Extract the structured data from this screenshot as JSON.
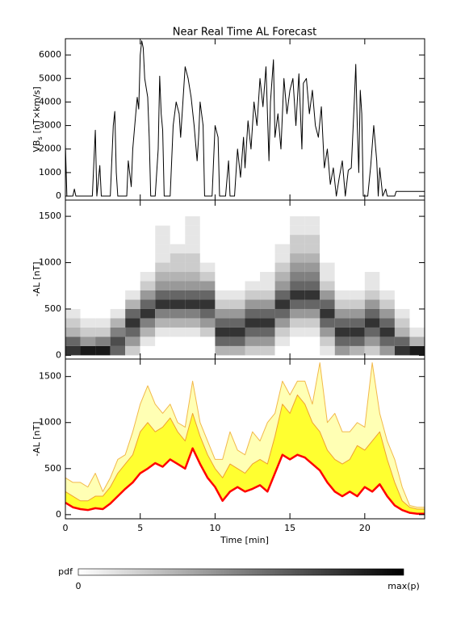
{
  "chart_data": [
    {
      "type": "line",
      "title": "Near Real Time AL Forecast",
      "ylabel": {
        "base": "VB",
        "sub": "s",
        "unit": "[nT×km/s]"
      },
      "xlim": [
        0,
        24
      ],
      "xticks": [
        0,
        5,
        10,
        15,
        20
      ],
      "ylim": [
        -170,
        6690
      ],
      "yticks": [
        0,
        1000,
        2000,
        3000,
        4000,
        5000,
        6000
      ],
      "x": [
        0,
        0.1,
        0.5,
        0.6,
        0.7,
        1.8,
        2.0,
        2.1,
        2.3,
        2.4,
        3.0,
        3.2,
        3.3,
        3.4,
        3.5,
        4.1,
        4.2,
        4.4,
        4.5,
        4.7,
        4.8,
        4.9,
        5.0,
        5.1,
        5.2,
        5.3,
        5.5,
        5.6,
        5.7,
        6.0,
        6.2,
        6.3,
        6.4,
        6.5,
        6.6,
        7.0,
        7.2,
        7.4,
        7.6,
        7.7,
        7.9,
        8.0,
        8.2,
        8.4,
        8.6,
        8.8,
        8.9,
        9.0,
        9.2,
        9.3,
        9.8,
        10.0,
        10.2,
        10.3,
        10.7,
        10.9,
        11.0,
        11.3,
        11.5,
        11.7,
        11.9,
        12.0,
        12.2,
        12.4,
        12.6,
        12.8,
        13.0,
        13.2,
        13.4,
        13.6,
        13.7,
        13.9,
        14.0,
        14.2,
        14.4,
        14.6,
        14.8,
        15.0,
        15.2,
        15.4,
        15.6,
        15.8,
        15.9,
        16.1,
        16.3,
        16.5,
        16.7,
        16.9,
        17.1,
        17.3,
        17.5,
        17.7,
        17.9,
        18.1,
        18.3,
        18.5,
        18.7,
        18.9,
        19.1,
        19.3,
        19.4,
        19.5,
        19.6,
        19.7,
        19.8,
        19.9,
        20.2,
        20.4,
        20.6,
        20.8,
        20.9,
        21.0,
        21.2,
        21.4,
        21.5,
        22.0,
        22.1,
        24
      ],
      "series": [
        {
          "color": "#000000",
          "values": [
            2200,
            0,
            0,
            300,
            0,
            0,
            2800,
            0,
            1300,
            0,
            0,
            3000,
            3600,
            1000,
            0,
            0,
            1500,
            400,
            2000,
            3500,
            4200,
            3700,
            6000,
            6600,
            6300,
            5000,
            4200,
            2500,
            0,
            0,
            2000,
            5100,
            3500,
            2800,
            0,
            0,
            3000,
            4000,
            3500,
            2500,
            4500,
            5500,
            5000,
            4200,
            3000,
            1500,
            2500,
            4000,
            3000,
            0,
            0,
            3000,
            2500,
            0,
            0,
            1500,
            0,
            0,
            2000,
            800,
            2500,
            1200,
            3200,
            2000,
            4000,
            3000,
            5000,
            3800,
            5500,
            1500,
            4000,
            5800,
            2500,
            3500,
            2000,
            5000,
            3500,
            4500,
            5000,
            3000,
            5200,
            2000,
            4800,
            5000,
            3500,
            4500,
            3000,
            2500,
            3800,
            1200,
            2000,
            500,
            1200,
            0,
            800,
            1500,
            0,
            1100,
            1200,
            4000,
            5600,
            3000,
            1000,
            4500,
            3500,
            0,
            0,
            1300,
            3000,
            1500,
            0,
            1200,
            0,
            300,
            0,
            0,
            200,
            200
          ]
        }
      ]
    },
    {
      "type": "heatmap",
      "ylabel": "-AL [nT]",
      "xlim": [
        0,
        24
      ],
      "xticks": [
        0,
        5,
        10,
        15,
        20
      ],
      "ylim": [
        -40,
        1675
      ],
      "yticks": [
        0,
        500,
        1000,
        1500
      ],
      "xbins": [
        0,
        1,
        2,
        3,
        4,
        5,
        6,
        7,
        8,
        9,
        10,
        11,
        12,
        13,
        14,
        15,
        16,
        17,
        18,
        19,
        20,
        21,
        22,
        23,
        24
      ],
      "ybins": [
        0,
        100,
        200,
        300,
        400,
        500,
        600,
        700,
        800,
        900,
        1000,
        1100,
        1200,
        1300,
        1400,
        1500
      ],
      "z": [
        [
          0.8,
          0.9,
          0.9,
          0.6,
          0.2,
          0,
          0,
          0,
          0,
          0,
          0.3,
          0.3,
          0.2,
          0.2,
          0,
          0,
          0,
          0.1,
          0.4,
          0.3,
          0.2,
          0.4,
          0.8,
          0.9
        ],
        [
          0.6,
          0.4,
          0.5,
          0.7,
          0.4,
          0.1,
          0,
          0,
          0,
          0,
          0.6,
          0.6,
          0.4,
          0.4,
          0.1,
          0,
          0,
          0.2,
          0.6,
          0.6,
          0.4,
          0.6,
          0.6,
          0.3
        ],
        [
          0.3,
          0.2,
          0.2,
          0.5,
          0.6,
          0.3,
          0.1,
          0.1,
          0.1,
          0.2,
          0.8,
          0.8,
          0.6,
          0.6,
          0.2,
          0.1,
          0.1,
          0.4,
          0.8,
          0.8,
          0.6,
          0.8,
          0.3,
          0.1
        ],
        [
          0.2,
          0.1,
          0.1,
          0.3,
          0.8,
          0.5,
          0.3,
          0.3,
          0.3,
          0.4,
          0.6,
          0.6,
          0.8,
          0.8,
          0.4,
          0.2,
          0.2,
          0.6,
          0.6,
          0.6,
          0.8,
          0.6,
          0.2,
          0
        ],
        [
          0.1,
          0,
          0,
          0.1,
          0.6,
          0.8,
          0.5,
          0.5,
          0.5,
          0.6,
          0.4,
          0.4,
          0.6,
          0.6,
          0.6,
          0.4,
          0.4,
          0.8,
          0.4,
          0.4,
          0.6,
          0.4,
          0.1,
          0
        ],
        [
          0,
          0,
          0,
          0,
          0.3,
          0.6,
          0.8,
          0.8,
          0.8,
          0.8,
          0.2,
          0.2,
          0.4,
          0.4,
          0.8,
          0.6,
          0.6,
          0.6,
          0.2,
          0.2,
          0.4,
          0.2,
          0,
          0
        ],
        [
          0,
          0,
          0,
          0,
          0.1,
          0.4,
          0.6,
          0.6,
          0.6,
          0.6,
          0.1,
          0.1,
          0.2,
          0.2,
          0.6,
          0.8,
          0.8,
          0.4,
          0.1,
          0.1,
          0.2,
          0.1,
          0,
          0
        ],
        [
          0,
          0,
          0,
          0,
          0,
          0.2,
          0.4,
          0.4,
          0.4,
          0.4,
          0,
          0,
          0.1,
          0.1,
          0.4,
          0.6,
          0.6,
          0.2,
          0,
          0,
          0.1,
          0,
          0,
          0
        ],
        [
          0,
          0,
          0,
          0,
          0,
          0.1,
          0.3,
          0.3,
          0.3,
          0.2,
          0,
          0,
          0,
          0.1,
          0.3,
          0.5,
          0.5,
          0.1,
          0,
          0,
          0.1,
          0,
          0,
          0
        ],
        [
          0,
          0,
          0,
          0,
          0,
          0,
          0.2,
          0.2,
          0.2,
          0.1,
          0,
          0,
          0,
          0,
          0.2,
          0.4,
          0.4,
          0.1,
          0,
          0,
          0,
          0,
          0,
          0
        ],
        [
          0,
          0,
          0,
          0,
          0,
          0,
          0.1,
          0.2,
          0.2,
          0,
          0,
          0,
          0,
          0,
          0.1,
          0.3,
          0.3,
          0,
          0,
          0,
          0,
          0,
          0,
          0
        ],
        [
          0,
          0,
          0,
          0,
          0,
          0,
          0.1,
          0.1,
          0.1,
          0,
          0,
          0,
          0,
          0,
          0.1,
          0.2,
          0.2,
          0,
          0,
          0,
          0,
          0,
          0,
          0
        ],
        [
          0,
          0,
          0,
          0,
          0,
          0,
          0.1,
          0,
          0.1,
          0,
          0,
          0,
          0,
          0,
          0,
          0.2,
          0.2,
          0,
          0,
          0,
          0,
          0,
          0,
          0
        ],
        [
          0,
          0,
          0,
          0,
          0,
          0,
          0.1,
          0,
          0.1,
          0,
          0,
          0,
          0,
          0,
          0,
          0.1,
          0.1,
          0,
          0,
          0,
          0,
          0,
          0,
          0
        ],
        [
          0,
          0,
          0,
          0,
          0,
          0,
          0,
          0,
          0.1,
          0,
          0,
          0,
          0,
          0,
          0,
          0.1,
          0.1,
          0,
          0,
          0,
          0,
          0,
          0,
          0
        ]
      ],
      "colorbar": {
        "label": "pdf",
        "min_label": "0",
        "max_label": "max(p)"
      }
    },
    {
      "type": "line",
      "ylabel": "-AL [nT]",
      "xlabel": "Time [min]",
      "xlim": [
        0,
        24
      ],
      "xticks": [
        0,
        5,
        10,
        15,
        20
      ],
      "ylim": [
        -45,
        1690
      ],
      "yticks": [
        0,
        500,
        1000,
        1500
      ],
      "x": [
        0,
        0.5,
        1,
        1.5,
        2,
        2.5,
        3,
        3.5,
        4,
        4.5,
        5,
        5.5,
        6,
        6.5,
        7,
        7.5,
        8,
        8.5,
        9,
        9.5,
        10,
        10.5,
        11,
        11.5,
        12,
        12.5,
        13,
        13.5,
        14,
        14.5,
        15,
        15.5,
        16,
        16.5,
        17,
        17.5,
        18,
        18.5,
        19,
        19.5,
        20,
        20.5,
        21,
        21.5,
        22,
        22.5,
        23,
        23.5,
        24
      ],
      "series": [
        {
          "color": "#f2b84b",
          "fill": "#ffffb4",
          "values": [
            400,
            350,
            350,
            300,
            450,
            250,
            400,
            600,
            650,
            900,
            1200,
            1400,
            1200,
            1100,
            1200,
            1000,
            950,
            1450,
            1000,
            800,
            600,
            600,
            900,
            700,
            650,
            900,
            800,
            1000,
            1100,
            1450,
            1300,
            1450,
            1450,
            1200,
            1650,
            1000,
            1100,
            900,
            900,
            1000,
            950,
            1650,
            1100,
            800,
            600,
            300,
            100,
            80,
            80
          ]
        },
        {
          "color": "#f0a030",
          "fill": "#ffff30",
          "values": [
            250,
            200,
            150,
            150,
            200,
            200,
            300,
            450,
            550,
            650,
            900,
            1000,
            900,
            950,
            1050,
            900,
            800,
            1100,
            850,
            650,
            500,
            400,
            550,
            500,
            450,
            550,
            600,
            550,
            850,
            1200,
            1100,
            1300,
            1200,
            1000,
            900,
            700,
            600,
            550,
            600,
            750,
            700,
            800,
            900,
            600,
            350,
            150,
            80,
            60,
            60
          ]
        },
        {
          "color": "#ff0000",
          "fill": "#ffffff",
          "linewidth": 2.5,
          "values": [
            130,
            80,
            60,
            50,
            70,
            60,
            120,
            200,
            280,
            350,
            450,
            500,
            560,
            520,
            600,
            550,
            500,
            720,
            550,
            400,
            300,
            150,
            250,
            300,
            250,
            280,
            320,
            250,
            450,
            650,
            600,
            650,
            620,
            550,
            480,
            350,
            250,
            200,
            250,
            200,
            300,
            250,
            330,
            200,
            100,
            50,
            20,
            10,
            10
          ]
        }
      ]
    }
  ]
}
